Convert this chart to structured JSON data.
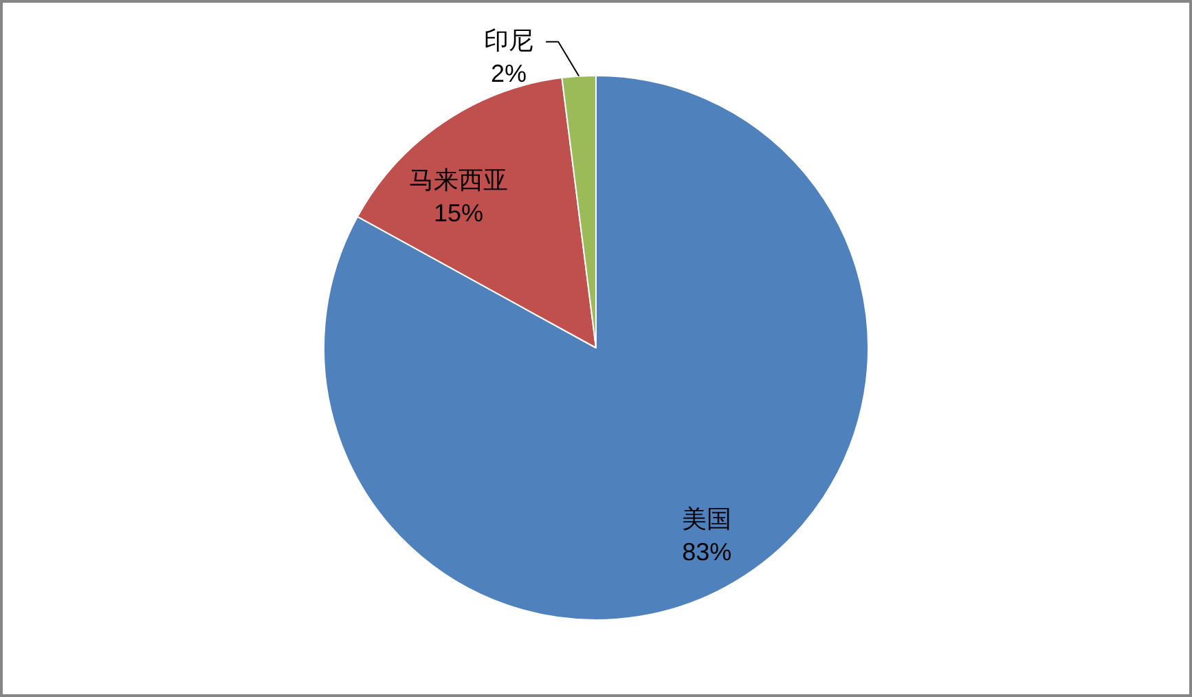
{
  "chart_data": {
    "type": "pie",
    "categories": [
      "美国",
      "马来西亚",
      "印尼"
    ],
    "values": [
      83,
      15,
      2
    ],
    "colors": [
      "#4f81bd",
      "#c0504d",
      "#9bbb59"
    ],
    "value_labels": [
      "83%",
      "15%",
      "2%"
    ]
  }
}
